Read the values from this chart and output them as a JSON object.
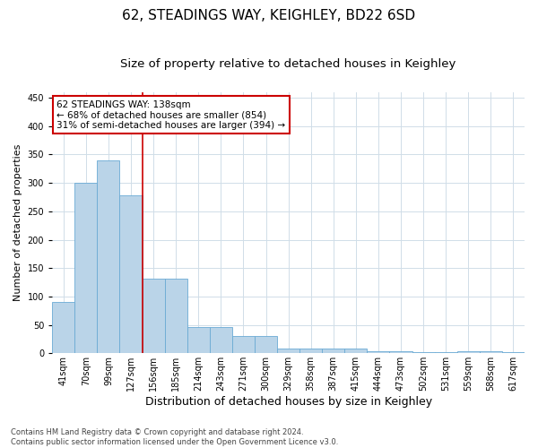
{
  "title": "62, STEADINGS WAY, KEIGHLEY, BD22 6SD",
  "subtitle": "Size of property relative to detached houses in Keighley",
  "xlabel": "Distribution of detached houses by size in Keighley",
  "ylabel": "Number of detached properties",
  "bar_labels": [
    "41sqm",
    "70sqm",
    "99sqm",
    "127sqm",
    "156sqm",
    "185sqm",
    "214sqm",
    "243sqm",
    "271sqm",
    "300sqm",
    "329sqm",
    "358sqm",
    "387sqm",
    "415sqm",
    "444sqm",
    "473sqm",
    "502sqm",
    "531sqm",
    "559sqm",
    "588sqm",
    "617sqm"
  ],
  "bar_values": [
    91,
    300,
    340,
    278,
    131,
    131,
    46,
    46,
    30,
    30,
    9,
    9,
    8,
    8,
    4,
    4,
    2,
    2,
    4,
    4,
    2
  ],
  "bar_color": "#bad4e8",
  "bar_edgecolor": "#6aaad4",
  "grid_color": "#d0dde8",
  "background_color": "#ffffff",
  "red_line_x": 3.5,
  "annotation_text": "62 STEADINGS WAY: 138sqm\n← 68% of detached houses are smaller (854)\n31% of semi-detached houses are larger (394) →",
  "annotation_box_color": "#ffffff",
  "annotation_box_edgecolor": "#cc0000",
  "footer": "Contains HM Land Registry data © Crown copyright and database right 2024.\nContains public sector information licensed under the Open Government Licence v3.0.",
  "ylim": [
    0,
    460
  ],
  "title_fontsize": 11,
  "subtitle_fontsize": 9.5,
  "tick_fontsize": 7,
  "ylabel_fontsize": 8,
  "xlabel_fontsize": 9
}
